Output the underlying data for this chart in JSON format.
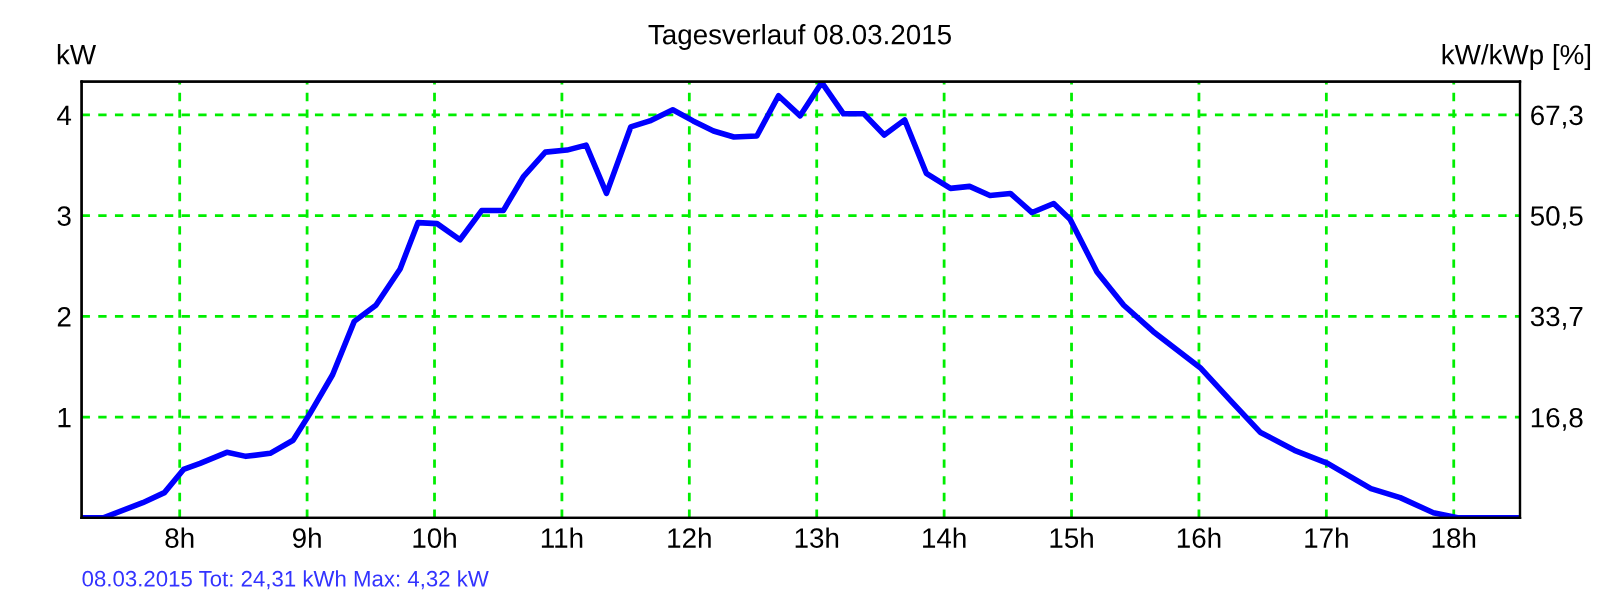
{
  "chart_data": {
    "type": "line",
    "title": "Tagesverlauf 08.03.2015",
    "ylabel": "kW",
    "y2label": "kW/kWp [%]",
    "annotations": [
      "08.03.2015 Tot: 24,31 kWh Max: 4,32 kW"
    ],
    "series": [
      {
        "color": "#0000ff",
        "x": [
          7.23,
          7.4,
          7.71,
          7.88,
          8.03,
          8.16,
          8.37,
          8.52,
          8.71,
          8.89,
          9.02,
          9.2,
          9.37,
          9.54,
          9.73,
          9.87,
          10.02,
          10.2,
          10.37,
          10.54,
          10.7,
          10.87,
          11.04,
          11.19,
          11.35,
          11.54,
          11.69,
          11.87,
          12.03,
          12.19,
          12.35,
          12.53,
          12.7,
          12.87,
          13.04,
          13.21,
          13.37,
          13.53,
          13.69,
          13.86,
          14.05,
          14.2,
          14.36,
          14.52,
          14.69,
          14.86,
          14.99,
          15.2,
          15.41,
          15.64,
          16.01,
          16.25,
          16.48,
          16.75,
          17.01,
          17.35,
          17.58,
          17.84,
          18.03,
          18.52
        ],
        "values": [
          0,
          0,
          0.15,
          0.25,
          0.48,
          0.54,
          0.65,
          0.61,
          0.64,
          0.77,
          1.03,
          1.42,
          1.95,
          2.11,
          2.47,
          2.93,
          2.92,
          2.76,
          3.05,
          3.05,
          3.39,
          3.63,
          3.65,
          3.7,
          3.22,
          3.88,
          3.94,
          4.05,
          3.94,
          3.84,
          3.78,
          3.79,
          4.19,
          3.99,
          4.32,
          4.01,
          4.01,
          3.8,
          3.95,
          3.42,
          3.27,
          3.29,
          3.2,
          3.22,
          3.03,
          3.12,
          2.96,
          2.44,
          2.11,
          1.85,
          1.49,
          1.16,
          0.85,
          0.67,
          0.54,
          0.29,
          0.2,
          0.05,
          0,
          0
        ]
      }
    ],
    "xlim": [
      7.23,
      18.52
    ],
    "xticks": [
      {
        "value": 8,
        "label": "8h"
      },
      {
        "value": 9,
        "label": "9h"
      },
      {
        "value": 10,
        "label": "10h"
      },
      {
        "value": 11,
        "label": "11h"
      },
      {
        "value": 12,
        "label": "12h"
      },
      {
        "value": 13,
        "label": "13h"
      },
      {
        "value": 14,
        "label": "14h"
      },
      {
        "value": 15,
        "label": "15h"
      },
      {
        "value": 16,
        "label": "16h"
      },
      {
        "value": 17,
        "label": "17h"
      },
      {
        "value": 18,
        "label": "18h"
      }
    ],
    "ylim": [
      0,
      4.33
    ],
    "yticks": [
      1,
      2,
      3,
      4
    ],
    "y2lim": [
      0,
      72.85
    ],
    "y2ticks": [
      {
        "value": 16.8,
        "label": "16,8"
      },
      {
        "value": 33.7,
        "label": "33,7"
      },
      {
        "value": 50.5,
        "label": "50,5"
      },
      {
        "value": 67.3,
        "label": "67,3"
      }
    ],
    "grid": true,
    "line_style": "solid",
    "marker": "none",
    "legend": false
  }
}
